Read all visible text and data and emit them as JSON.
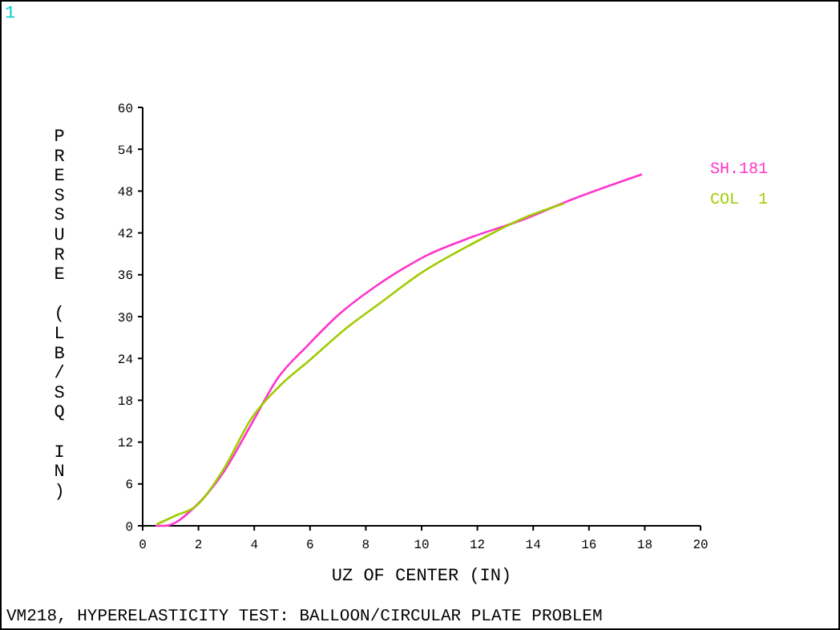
{
  "chart_data": {
    "type": "line",
    "xlabel": "UZ OF CENTER (IN)",
    "ylabel": "PRESSURE (LB/SQ IN)",
    "annotations": [
      "1",
      "VM218, HYPERELASTICITY TEST: BALLOON/CIRCULAR PLATE PROBLEM"
    ],
    "xlim": [
      0,
      20
    ],
    "xticks": [
      0,
      2,
      4,
      6,
      8,
      10,
      12,
      14,
      16,
      18,
      20
    ],
    "ylim": [
      0,
      60
    ],
    "yticks": [
      0,
      6,
      12,
      18,
      24,
      30,
      36,
      42,
      48,
      54,
      60
    ],
    "grid": false,
    "legend": "right",
    "series": [
      {
        "name": "SH.181",
        "color": "#ff33cc",
        "x": [
          0.46,
          0.8,
          1.87,
          2.9,
          3.9,
          4.85,
          5.9,
          7.06,
          8.3,
          9.1,
          10.2,
          11.8,
          13.7,
          15.2,
          17.9
        ],
        "values": [
          0,
          0,
          2.7,
          7.7,
          14.6,
          21.2,
          25.8,
          30.4,
          34.2,
          36.3,
          38.8,
          41.4,
          44,
          46.5,
          50.4
        ]
      },
      {
        "name": "COL  1",
        "color": "#9fcc00",
        "x": [
          0.5,
          1.2,
          1.87,
          2.9,
          3.9,
          4.85,
          6,
          7.35,
          8.5,
          10,
          11.8,
          13.7,
          15.1
        ],
        "values": [
          0.2,
          1.5,
          2.7,
          8.1,
          15.4,
          19.8,
          23.8,
          28.5,
          31.9,
          36.3,
          40.4,
          44.2,
          46.2
        ]
      }
    ]
  }
}
